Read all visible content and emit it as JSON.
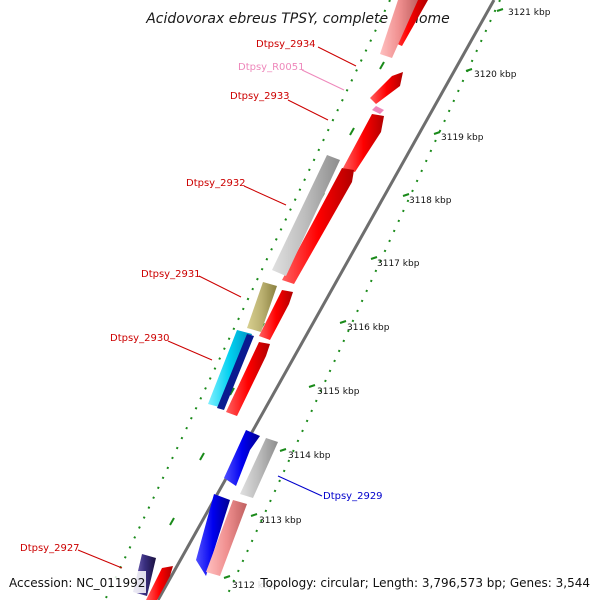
{
  "title": "Acidovorax ebreus TPSY, complete genome",
  "footer": {
    "accession": "Accession: NC_011992",
    "summary": "Topology: circular; Length: 3,796,573 bp; Genes: 3,544"
  },
  "scale_ticks": [
    {
      "label": "3112 kbp",
      "kbp": 3112
    },
    {
      "label": "3113 kbp",
      "kbp": 3113
    },
    {
      "label": "3114 kbp",
      "kbp": 3114
    },
    {
      "label": "3115 kbp",
      "kbp": 3115
    },
    {
      "label": "3116 kbp",
      "kbp": 3116
    },
    {
      "label": "3117 kbp",
      "kbp": 3117
    },
    {
      "label": "3118 kbp",
      "kbp": 3118
    },
    {
      "label": "3119 kbp",
      "kbp": 3119
    },
    {
      "label": "3120 kbp",
      "kbp": 3120
    },
    {
      "label": "3121 kbp",
      "kbp": 3121
    }
  ],
  "gene_labels": [
    {
      "text": "Dtpsy_2934",
      "color": "#cc0000"
    },
    {
      "text": "Dtpsy_R0051",
      "color": "#ee88bb"
    },
    {
      "text": "Dtpsy_2933",
      "color": "#cc0000"
    },
    {
      "text": "Dtpsy_2932",
      "color": "#cc0000"
    },
    {
      "text": "Dtpsy_2931",
      "color": "#cc0000"
    },
    {
      "text": "Dtpsy_2930",
      "color": "#cc0000"
    },
    {
      "text": "Dtpsy_2929",
      "color": "#0000cc"
    },
    {
      "text": "Dtpsy_2927",
      "color": "#cc0000"
    }
  ],
  "colors": {
    "backbone": "#6e6e6e",
    "tick": "#1a8a1a",
    "cds_forward": "#ff0000",
    "cds_reverse": "#0000ff",
    "gc_gray": "#b4b4b4",
    "gc_olive": "#b8b070",
    "gc_cyan": "#00c8f0",
    "gc_pink": "#f08a8a",
    "gc_dark": "#3a2f80",
    "rna": "#ee88bb"
  }
}
